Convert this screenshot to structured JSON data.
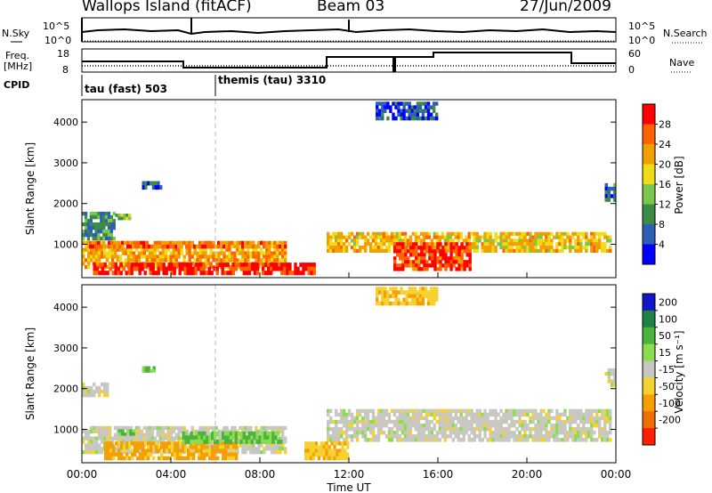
{
  "header": {
    "title": "Wallops Island (fitACF)",
    "beam": "Beam 03",
    "date": "27/Jun/2009"
  },
  "top_panels": {
    "nsky_label": "N.Sky",
    "nsearch_label": "N.Search",
    "nsky_ticks": [
      "10^5",
      "10^0"
    ],
    "nsearch_ticks": [
      "10^5",
      "10^0"
    ],
    "freq_label": [
      "Freq.",
      "[MHz]"
    ],
    "freq_ticks": [
      "18",
      "8"
    ],
    "nave_label": "Nave",
    "nave_ticks": [
      "60",
      "0"
    ],
    "cpid_label": "CPID",
    "cpid_segments": [
      {
        "name": "tau (fast) 503",
        "start_h": 0,
        "end_h": 6
      },
      {
        "name": "themis (tau) 3310",
        "start_h": 6,
        "end_h": 24
      }
    ]
  },
  "colors": {
    "power": [
      "#0000ff",
      "#2f5fb5",
      "#3c8c46",
      "#78c850",
      "#f0dc14",
      "#f0a000",
      "#ff6400",
      "#ff0000"
    ],
    "velocity": [
      "#1414c8",
      "#1e8246",
      "#4bb43c",
      "#8cdc50",
      "#c8c8c0",
      "#f5d232",
      "#f5a000",
      "#f06e00",
      "#ff1e00"
    ]
  },
  "chart_data": [
    {
      "type": "heatmap",
      "name": "power",
      "xlabel": "",
      "ylabel": "Slant Range [km]",
      "xlim": [
        0,
        24
      ],
      "ylim": [
        180,
        4550
      ],
      "yticks": [
        1000,
        2000,
        3000,
        4000
      ],
      "colorbar": {
        "label": "Power [dB]",
        "ticks": [
          "4",
          "8",
          "12",
          "16",
          "20",
          "24",
          "28"
        ],
        "range": [
          0,
          32
        ]
      },
      "regions": [
        {
          "t0": 0,
          "t1": 9.2,
          "r0": 400,
          "r1": 1080,
          "value": 22
        },
        {
          "t0": 0.5,
          "t1": 6.5,
          "r0": 250,
          "r1": 550,
          "value": 30
        },
        {
          "t0": 6.5,
          "t1": 10.5,
          "r0": 250,
          "r1": 550,
          "value": 29
        },
        {
          "t0": 0.2,
          "t1": 9.2,
          "r0": 900,
          "r1": 1080,
          "value": 25
        },
        {
          "t0": 11,
          "t1": 23.8,
          "r0": 800,
          "r1": 1300,
          "value": 20
        },
        {
          "t0": 14,
          "t1": 17.5,
          "r0": 350,
          "r1": 1050,
          "value": 28
        },
        {
          "t0": 0,
          "t1": 1.5,
          "r0": 1100,
          "r1": 1800,
          "value": 10
        },
        {
          "t0": 1.5,
          "t1": 2.2,
          "r0": 1600,
          "r1": 1750,
          "value": 13
        },
        {
          "t0": 2.7,
          "t1": 3.6,
          "r0": 2350,
          "r1": 2550,
          "value": 6
        },
        {
          "t0": 13.2,
          "t1": 16,
          "r0": 4050,
          "r1": 4500,
          "value": 6
        },
        {
          "t0": 23.5,
          "t1": 24,
          "r0": 2050,
          "r1": 2500,
          "value": 8
        }
      ]
    },
    {
      "type": "heatmap",
      "name": "velocity",
      "xlabel": "Time UT",
      "ylabel": "Slant Range [km]",
      "xlim": [
        0,
        24
      ],
      "ylim": [
        180,
        4550
      ],
      "yticks": [
        1000,
        2000,
        3000,
        4000
      ],
      "xticks": [
        "00:00",
        "04:00",
        "08:00",
        "12:00",
        "16:00",
        "20:00",
        "00:00"
      ],
      "colorbar": {
        "label": "Velocity [m s⁻¹]",
        "ticks": [
          "200",
          "100",
          "50",
          "15",
          "-15",
          "-50",
          "-100",
          "-200"
        ],
        "range": [
          -250,
          250
        ]
      },
      "regions": [
        {
          "t0": 0,
          "t1": 9.2,
          "r0": 400,
          "r1": 1080,
          "value": 0
        },
        {
          "t0": 1,
          "t1": 7,
          "r0": 250,
          "r1": 700,
          "value": -60
        },
        {
          "t0": 4.5,
          "t1": 9,
          "r0": 650,
          "r1": 950,
          "value": 55
        },
        {
          "t0": 1.5,
          "t1": 2.5,
          "r0": 850,
          "r1": 1000,
          "value": 60
        },
        {
          "t0": 11,
          "t1": 23.8,
          "r0": 700,
          "r1": 1500,
          "value": 0
        },
        {
          "t0": 10,
          "t1": 12,
          "r0": 250,
          "r1": 700,
          "value": -40
        },
        {
          "t0": 0,
          "t1": 1.2,
          "r0": 1800,
          "r1": 2150,
          "value": 0
        },
        {
          "t0": 2.7,
          "t1": 3.3,
          "r0": 2400,
          "r1": 2550,
          "value": 60
        },
        {
          "t0": 13.2,
          "t1": 16,
          "r0": 4050,
          "r1": 4500,
          "value": -40
        },
        {
          "t0": 23.5,
          "t1": 24,
          "r0": 2050,
          "r1": 2500,
          "value": 0
        }
      ]
    }
  ]
}
